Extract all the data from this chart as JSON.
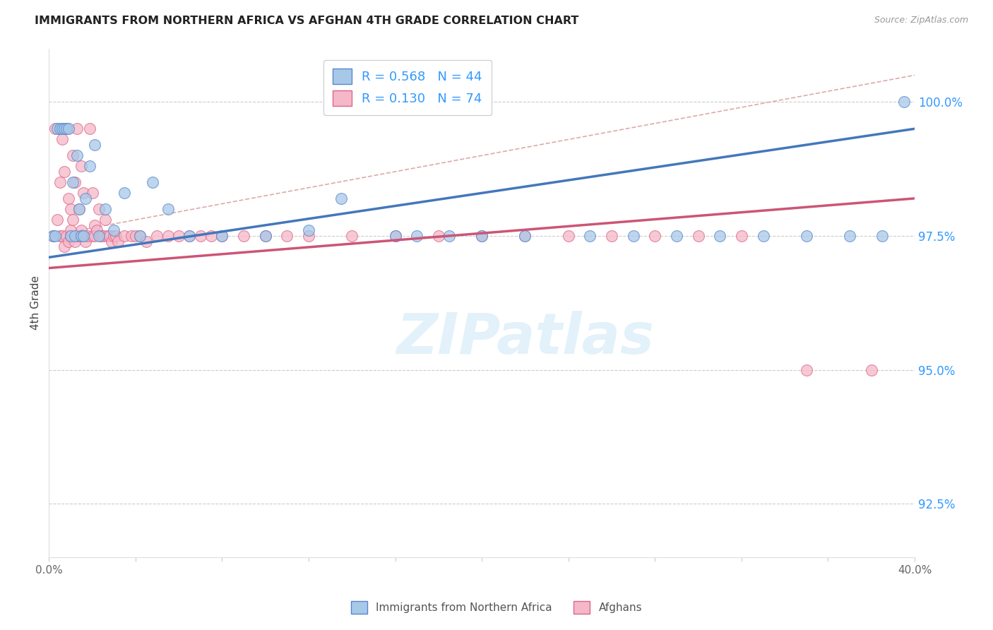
{
  "title": "IMMIGRANTS FROM NORTHERN AFRICA VS AFGHAN 4TH GRADE CORRELATION CHART",
  "source": "Source: ZipAtlas.com",
  "ylabel": "4th Grade",
  "xmin": 0.0,
  "xmax": 40.0,
  "ymin": 91.5,
  "ymax": 101.0,
  "yticks": [
    92.5,
    95.0,
    97.5,
    100.0
  ],
  "ytick_labels": [
    "92.5%",
    "95.0%",
    "97.5%",
    "100.0%"
  ],
  "blue_R": 0.568,
  "blue_N": 44,
  "pink_R": 0.13,
  "pink_N": 74,
  "blue_color": "#a8c8e8",
  "pink_color": "#f4b8c8",
  "blue_edge_color": "#5588cc",
  "pink_edge_color": "#dd6688",
  "blue_line_color": "#4477bb",
  "pink_line_color": "#cc5577",
  "diag_color": "#ddaaaa",
  "legend_label_blue": "Immigrants from Northern Africa",
  "legend_label_pink": "Afghans",
  "axis_label_color": "#3399ff",
  "watermark_color": "#d0e8f8",
  "blue_reg_x0": 0.0,
  "blue_reg_y0": 97.1,
  "blue_reg_x1": 40.0,
  "blue_reg_y1": 99.5,
  "pink_reg_x0": 0.0,
  "pink_reg_y0": 96.9,
  "pink_reg_x1": 40.0,
  "pink_reg_y1": 98.2,
  "diag_x0": 0.0,
  "diag_y0": 97.5,
  "diag_x1": 40.0,
  "diag_y1": 100.5,
  "blue_scatter_x": [
    0.2,
    0.3,
    0.4,
    0.5,
    0.6,
    0.7,
    0.8,
    0.9,
    1.0,
    1.1,
    1.2,
    1.3,
    1.4,
    1.5,
    1.6,
    1.7,
    1.9,
    2.1,
    2.3,
    2.6,
    3.0,
    3.5,
    4.2,
    4.8,
    5.5,
    6.5,
    8.0,
    10.0,
    12.0,
    13.5,
    16.0,
    17.0,
    18.5,
    20.0,
    22.0,
    25.0,
    27.0,
    29.0,
    31.0,
    33.0,
    35.0,
    37.0,
    38.5,
    39.5
  ],
  "blue_scatter_y": [
    97.5,
    97.5,
    99.5,
    99.5,
    99.5,
    99.5,
    99.5,
    99.5,
    97.5,
    98.5,
    97.5,
    99.0,
    98.0,
    97.5,
    97.5,
    98.2,
    98.8,
    99.2,
    97.5,
    98.0,
    97.6,
    98.3,
    97.5,
    98.5,
    98.0,
    97.5,
    97.5,
    97.5,
    97.6,
    98.2,
    97.5,
    97.5,
    97.5,
    97.5,
    97.5,
    97.5,
    97.5,
    97.5,
    97.5,
    97.5,
    97.5,
    97.5,
    97.5,
    100.0
  ],
  "pink_scatter_x": [
    0.2,
    0.3,
    0.4,
    0.5,
    0.5,
    0.6,
    0.6,
    0.7,
    0.7,
    0.8,
    0.8,
    0.9,
    0.9,
    1.0,
    1.0,
    1.0,
    1.1,
    1.1,
    1.2,
    1.2,
    1.3,
    1.3,
    1.4,
    1.4,
    1.5,
    1.5,
    1.6,
    1.6,
    1.7,
    1.8,
    1.9,
    2.0,
    2.0,
    2.1,
    2.1,
    2.2,
    2.3,
    2.4,
    2.5,
    2.6,
    2.7,
    2.8,
    2.9,
    3.0,
    3.1,
    3.2,
    3.5,
    3.8,
    4.0,
    4.2,
    4.5,
    5.0,
    5.5,
    6.0,
    6.5,
    7.0,
    7.5,
    8.0,
    9.0,
    10.0,
    11.0,
    12.0,
    14.0,
    16.0,
    18.0,
    20.0,
    22.0,
    24.0,
    26.0,
    28.0,
    30.0,
    32.0,
    35.0,
    38.0
  ],
  "pink_scatter_y": [
    97.5,
    99.5,
    97.8,
    97.5,
    98.5,
    97.5,
    99.3,
    97.3,
    98.7,
    97.5,
    99.5,
    97.4,
    98.2,
    97.5,
    97.6,
    98.0,
    97.8,
    99.0,
    97.4,
    98.5,
    97.5,
    99.5,
    98.0,
    97.5,
    97.6,
    98.8,
    97.5,
    98.3,
    97.4,
    97.5,
    99.5,
    98.3,
    97.5,
    97.5,
    97.7,
    97.6,
    98.0,
    97.5,
    97.5,
    97.8,
    97.5,
    97.5,
    97.4,
    97.5,
    97.5,
    97.4,
    97.5,
    97.5,
    97.5,
    97.5,
    97.4,
    97.5,
    97.5,
    97.5,
    97.5,
    97.5,
    97.5,
    97.5,
    97.5,
    97.5,
    97.5,
    97.5,
    97.5,
    97.5,
    97.5,
    97.5,
    97.5,
    97.5,
    97.5,
    97.5,
    97.5,
    97.5,
    95.0,
    95.0
  ]
}
